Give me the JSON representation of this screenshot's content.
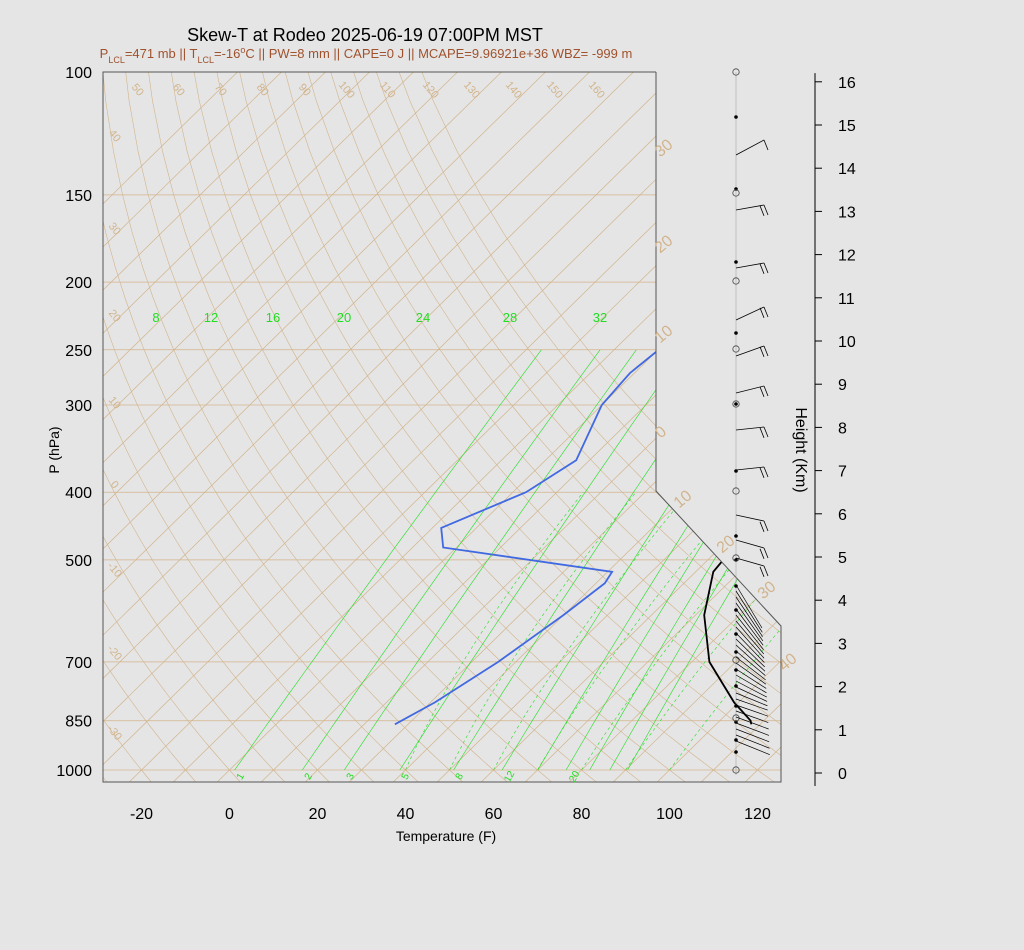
{
  "chart_data": {
    "type": "skew-t",
    "title": "Skew-T at Rodeo 2025-06-19 07:00PM MST",
    "subtitle": {
      "segments": [
        {
          "text": "P"
        },
        {
          "text": "LCL",
          "sub": true
        },
        {
          "text": "=471 mb || T"
        },
        {
          "text": "LCL",
          "sub": true
        },
        {
          "text": "=-16"
        },
        {
          "text": "o",
          "sup": true
        },
        {
          "text": "C || PW=8 mm || CAPE=0 J || MCAPE=9.96921e+36 WBZ= -999 m"
        }
      ]
    },
    "xlabel": "Temperature (F)",
    "ylabel": "P (hPa)",
    "y2label": "Height (Km)",
    "x_ticks": [
      -20,
      0,
      20,
      40,
      60,
      80,
      100,
      120
    ],
    "pressure_ticks": [
      100,
      150,
      200,
      250,
      300,
      400,
      500,
      700,
      850,
      1000
    ],
    "height_ticks": [
      0,
      1,
      2,
      3,
      4,
      5,
      6,
      7,
      8,
      9,
      10,
      11,
      12,
      13,
      14,
      15,
      16
    ],
    "mixing_ratio_top_labels": [
      "8",
      "12",
      "16",
      "20",
      "24",
      "28",
      "32"
    ],
    "mixing_ratio_bottom_labels": [
      "1",
      "2",
      "3",
      "5",
      "8",
      "12",
      "20"
    ],
    "skewed_isotherm_labels_top": [
      "50",
      "60",
      "70",
      "80",
      "90",
      "100",
      "110",
      "120",
      "130",
      "140",
      "150",
      "160"
    ],
    "skewed_isotherm_labels_left": [
      "40",
      "30",
      "20",
      "10",
      "0",
      "-10",
      "-20",
      "-30"
    ],
    "skewed_isotherm_labels_right": [
      "30",
      "20",
      "10",
      "0",
      "10",
      "20",
      "30",
      "40"
    ],
    "temperature_profile": [
      {
        "p": 860,
        "t": 108
      },
      {
        "p": 850,
        "t": 107
      },
      {
        "p": 800,
        "t": 99
      },
      {
        "p": 700,
        "t": 84
      },
      {
        "p": 600,
        "t": 72
      },
      {
        "p": 520,
        "t": 64
      },
      {
        "p": 480,
        "t": 63
      },
      {
        "p": 440,
        "t": 59
      },
      {
        "p": 400,
        "t": 55
      },
      {
        "p": 350,
        "t": 48
      },
      {
        "p": 300,
        "t": 42
      },
      {
        "p": 250,
        "t": 37
      },
      {
        "p": 200,
        "t": 33
      },
      {
        "p": 175,
        "t": 31
      },
      {
        "p": 130,
        "t": 31
      },
      {
        "p": 100,
        "t": 42
      }
    ],
    "dewpoint_profile": [
      {
        "p": 860,
        "t": 27
      },
      {
        "p": 800,
        "t": 31
      },
      {
        "p": 700,
        "t": 36
      },
      {
        "p": 600,
        "t": 40
      },
      {
        "p": 540,
        "t": 42
      },
      {
        "p": 520,
        "t": 41
      },
      {
        "p": 480,
        "t": -3
      },
      {
        "p": 450,
        "t": -8
      },
      {
        "p": 400,
        "t": 3
      },
      {
        "p": 360,
        "t": 7
      },
      {
        "p": 300,
        "t": 0
      },
      {
        "p": 270,
        "t": -1
      },
      {
        "p": 220,
        "t": 2
      },
      {
        "p": 160,
        "t": 4
      },
      {
        "p": 130,
        "t": 7
      },
      {
        "p": 100,
        "t": 22
      }
    ],
    "colors": {
      "temperature": "#000000",
      "dewpoint": "#4169e1",
      "isotherm": "#d2b48c",
      "mixing_ratio": "#22dd22",
      "subtitle": "#a0522d",
      "background": "#e5e5e5"
    }
  }
}
